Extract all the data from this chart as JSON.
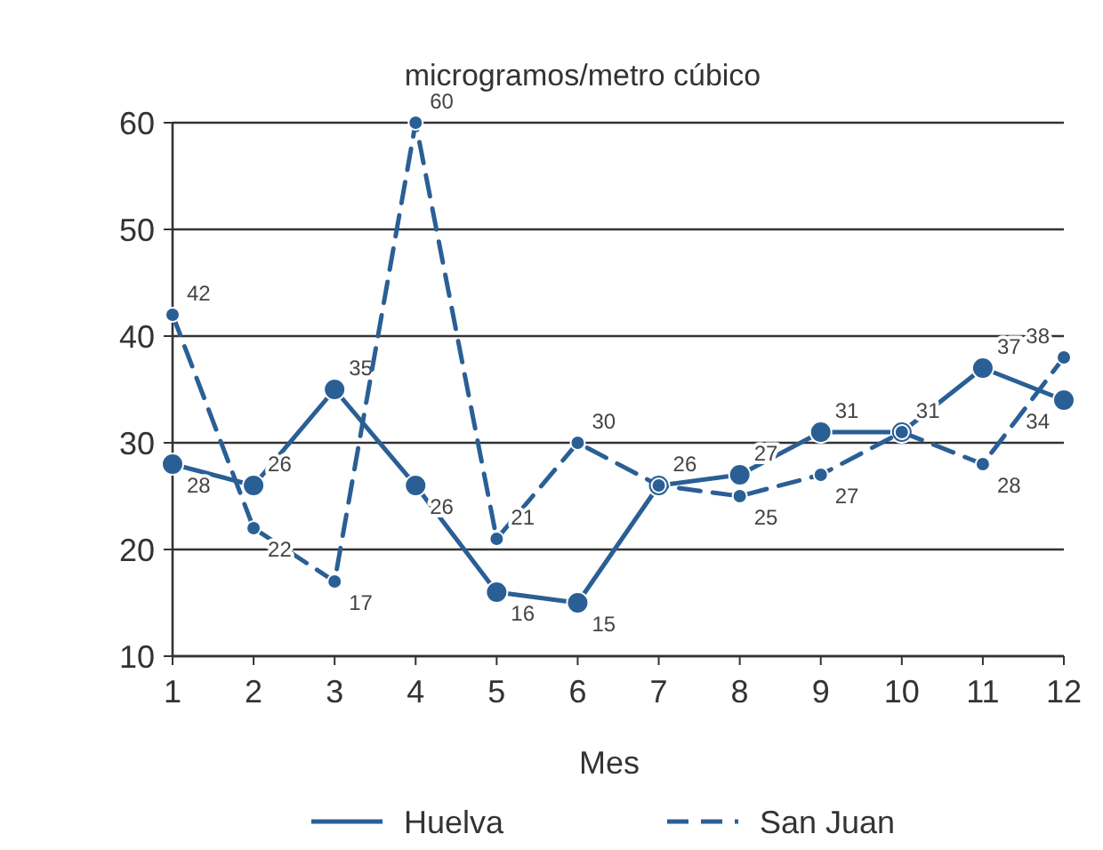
{
  "chart_data": {
    "type": "line",
    "title": "microgramos/metro cúbico",
    "xlabel": "Mes",
    "x": [
      1,
      2,
      3,
      4,
      5,
      6,
      7,
      8,
      9,
      10,
      11,
      12
    ],
    "xlim": [
      1,
      12
    ],
    "xticks": [
      1,
      2,
      3,
      4,
      5,
      6,
      7,
      8,
      9,
      10,
      11,
      12
    ],
    "ylim": [
      10,
      60
    ],
    "yticks": [
      10,
      20,
      30,
      40,
      50,
      60
    ],
    "grid": "y",
    "legend": "bottom",
    "marker": "circle",
    "series": [
      {
        "name": "Huelva",
        "color": "#2a5f95",
        "line_style": "solid",
        "values": [
          28,
          26,
          35,
          26,
          16,
          15,
          26,
          27,
          31,
          31,
          37,
          34
        ],
        "value_labels": [
          "28",
          "26",
          "35",
          "26",
          "16",
          "15",
          "26",
          "27",
          "31",
          "31",
          "37",
          "34"
        ]
      },
      {
        "name": "San Juan",
        "color": "#2a5f95",
        "line_style": "dashed",
        "values": [
          42,
          22,
          17,
          60,
          21,
          30,
          26,
          25,
          27,
          31,
          28,
          38
        ],
        "value_labels": [
          "42",
          "22",
          "17",
          "60",
          "21",
          "30",
          null,
          "25",
          "27",
          null,
          "28",
          "38"
        ]
      }
    ]
  }
}
